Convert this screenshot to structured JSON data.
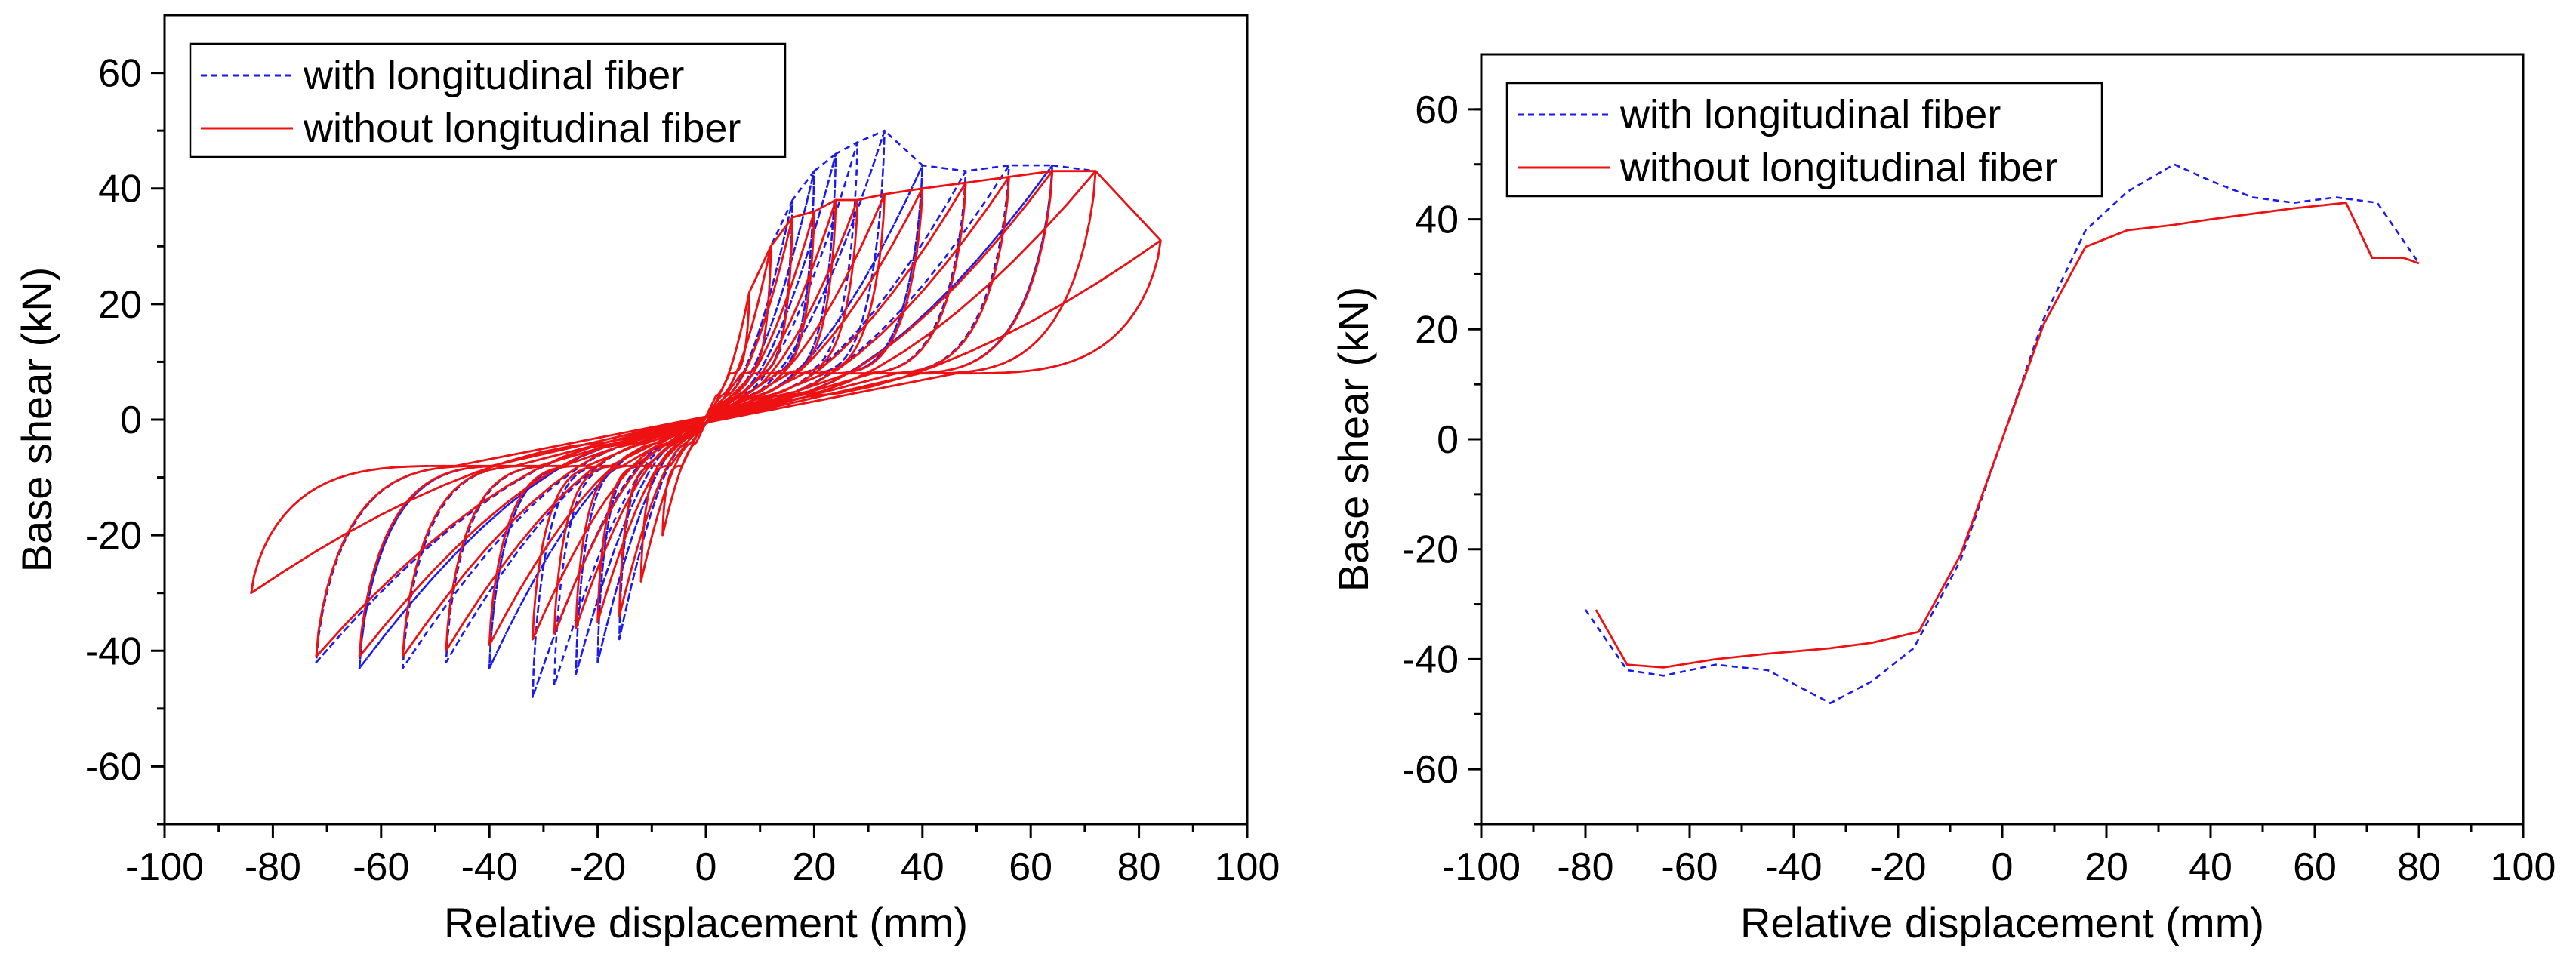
{
  "colors": {
    "with_fiber": "#1a1aee",
    "without_fiber": "#ee1111",
    "axis": "#000000"
  },
  "chart_data": [
    {
      "type": "line",
      "subtype": "hysteresis",
      "title": "",
      "xlabel": "Relative displacement (mm)",
      "ylabel": "Base shear (kN)",
      "xlim": [
        -100,
        100
      ],
      "ylim": [
        -70,
        70
      ],
      "xticks": [
        "-100",
        "-80",
        "-60",
        "-40",
        "-20",
        "0",
        "20",
        "40",
        "60",
        "80",
        "100"
      ],
      "yticks": [
        "60",
        "40",
        "20",
        "0",
        "-20",
        "-40",
        "-60"
      ],
      "legend": [
        "with longitudinal fiber",
        "without longitudinal fiber"
      ],
      "legend_position": "top-left",
      "series": [
        {
          "name": "with longitudinal fiber",
          "style": "dashed",
          "color": "#1a1aee",
          "cycle_peaks": [
            [
              8,
              22,
              -8,
              -20
            ],
            [
              12,
              30,
              -12,
              -28
            ],
            [
              16,
              38,
              -16,
              -38
            ],
            [
              20,
              43,
              -20,
              -42
            ],
            [
              24,
              46,
              -24,
              -44
            ],
            [
              28,
              48,
              -28,
              -46
            ],
            [
              33,
              50,
              -32,
              -48
            ],
            [
              40,
              44,
              -40,
              -43
            ],
            [
              48,
              43,
              -48,
              -42
            ],
            [
              56,
              44,
              -56,
              -43
            ],
            [
              64,
              44,
              -64,
              -43
            ],
            [
              72,
              43,
              -72,
              -42
            ],
            [
              84,
              31,
              -84,
              -30
            ]
          ]
        },
        {
          "name": "without longitudinal fiber",
          "style": "solid",
          "color": "#ee1111",
          "cycle_peaks": [
            [
              8,
              22,
              -8,
              -20
            ],
            [
              12,
              30,
              -12,
              -28
            ],
            [
              16,
              35,
              -16,
              -34
            ],
            [
              20,
              36,
              -20,
              -35
            ],
            [
              24,
              38,
              -24,
              -36
            ],
            [
              28,
              38,
              -28,
              -37
            ],
            [
              33,
              39,
              -32,
              -38
            ],
            [
              40,
              40,
              -40,
              -39
            ],
            [
              48,
              41,
              -48,
              -40
            ],
            [
              56,
              42,
              -56,
              -41
            ],
            [
              64,
              43,
              -64,
              -41
            ],
            [
              72,
              43,
              -72,
              -41
            ],
            [
              84,
              31,
              -84,
              -30
            ]
          ]
        }
      ]
    },
    {
      "type": "line",
      "subtype": "skeleton",
      "title": "",
      "xlabel": "Relative displacement (mm)",
      "ylabel": "Base shear (kN)",
      "xlim": [
        -100,
        100
      ],
      "ylim": [
        -70,
        70
      ],
      "xticks": [
        "-100",
        "-80",
        "-60",
        "-40",
        "-20",
        "0",
        "20",
        "40",
        "60",
        "80",
        "100"
      ],
      "yticks": [
        "60",
        "40",
        "20",
        "0",
        "-20",
        "-40",
        "-60"
      ],
      "legend": [
        "with longitudinal fiber",
        "without longitudinal fiber"
      ],
      "legend_position": "top-left",
      "series": [
        {
          "name": "with longitudinal fiber",
          "style": "dashed",
          "color": "#1a1aee",
          "x": [
            -80,
            -72,
            -65,
            -55,
            -45,
            -33,
            -25,
            -17,
            -8,
            0,
            8,
            16,
            24,
            33,
            40,
            48,
            56,
            64,
            72,
            80
          ],
          "y": [
            -31,
            -42,
            -43,
            -41,
            -42,
            -48,
            -44,
            -38,
            -22,
            0,
            22,
            38,
            45,
            50,
            47,
            44,
            43,
            44,
            43,
            32
          ]
        },
        {
          "name": "without longitudinal fiber",
          "style": "solid",
          "color": "#ee1111",
          "x": [
            -78,
            -72,
            -65,
            -55,
            -45,
            -33,
            -25,
            -16,
            -8,
            0,
            8,
            16,
            24,
            33,
            40,
            48,
            56,
            66,
            71,
            77,
            80
          ],
          "y": [
            -31,
            -41,
            -41.5,
            -40,
            -39,
            -38,
            -37,
            -35,
            -21,
            0,
            21,
            35,
            38,
            39,
            40,
            41,
            42,
            43,
            33,
            33,
            32
          ]
        }
      ]
    }
  ]
}
